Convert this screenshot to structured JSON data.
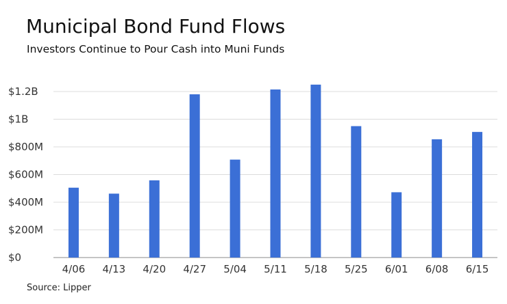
{
  "chart_data": {
    "type": "bar",
    "title": "Municipal Bond Fund Flows",
    "subtitle": "Investors Continue to Pour Cash into Muni Funds",
    "source": "Source: Lipper",
    "xlabel": "",
    "ylabel": "",
    "categories": [
      "4/06",
      "4/13",
      "4/20",
      "4/27",
      "5/04",
      "5/11",
      "5/18",
      "5/25",
      "6/01",
      "6/08",
      "6/15"
    ],
    "values": [
      505,
      462,
      558,
      1180,
      708,
      1215,
      1250,
      950,
      472,
      855,
      908
    ],
    "unit": "millions of dollars",
    "ylim": [
      0,
      1200
    ],
    "yticks": [
      {
        "value": 0,
        "label": "$0"
      },
      {
        "value": 200,
        "label": "$200M"
      },
      {
        "value": 400,
        "label": "$400M"
      },
      {
        "value": 600,
        "label": "$600M"
      },
      {
        "value": 800,
        "label": "$800M"
      },
      {
        "value": 1000,
        "label": "$1B"
      },
      {
        "value": 1200,
        "label": "$1.2B"
      }
    ],
    "grid": true,
    "bar_color": "#3b6fd6"
  }
}
